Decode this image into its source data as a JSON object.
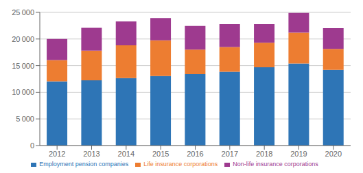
{
  "chart_data": {
    "type": "bar",
    "stacked": true,
    "grid": true,
    "legend": "bottom",
    "categories": [
      "2012",
      "2013",
      "2014",
      "2015",
      "2016",
      "2017",
      "2018",
      "2019",
      "2020"
    ],
    "series": [
      {
        "name": "Employment pension companies",
        "color": "#2E75B6",
        "values": [
          12050,
          12250,
          12650,
          13050,
          13400,
          13850,
          14700,
          15400,
          14200
        ]
      },
      {
        "name": "Life insurance corporations",
        "color": "#ED7D31",
        "values": [
          4000,
          5550,
          6150,
          6700,
          4600,
          4650,
          4600,
          5800,
          3950
        ]
      },
      {
        "name": "Non-life insurance corporations",
        "color": "#9E3A8F",
        "values": [
          3950,
          4300,
          4500,
          4200,
          4450,
          4300,
          3500,
          3700,
          3900
        ]
      }
    ],
    "ylim": [
      0,
      25000
    ],
    "yticks": [
      0,
      {
        "value": 5000,
        "label": "5 000"
      },
      {
        "value": 10000,
        "label": "10 000"
      },
      {
        "value": 15000,
        "label": "15 000"
      },
      {
        "value": 20000,
        "label": "20 000"
      },
      {
        "value": 25000,
        "label": "25 000"
      }
    ]
  }
}
